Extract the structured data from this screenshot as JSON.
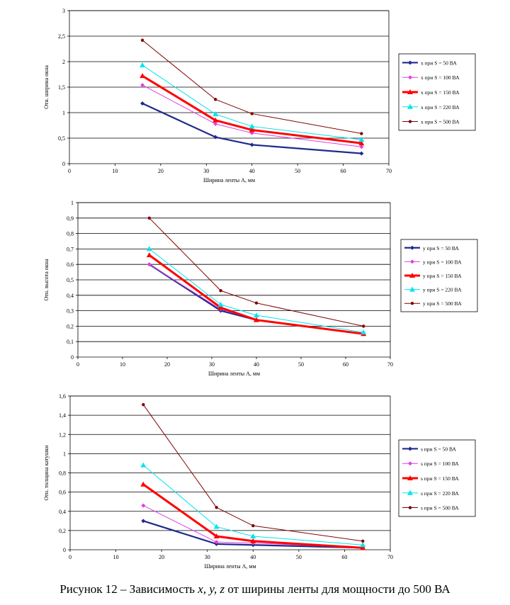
{
  "caption": {
    "prefix": "Рисунок 12 – Зависимость ",
    "vars": "x, y, z",
    "suffix": " от ширины ленты для мощности до 500 ВА"
  },
  "chart_data": [
    {
      "type": "line",
      "ylabel": "Отн. ширина окна",
      "xlabel": "Ширина ленты А, мм",
      "xlim": [
        0,
        70
      ],
      "ylim": [
        0,
        3
      ],
      "xticks": [
        "0",
        "10",
        "20",
        "30",
        "40",
        "50",
        "60",
        "70"
      ],
      "yticks": [
        "0",
        "0,5",
        "1",
        "1,5",
        "2",
        "2,5",
        "3"
      ],
      "grid": "horizontal",
      "legend_position": "right",
      "x": [
        16,
        32,
        40,
        64
      ],
      "series": [
        {
          "name": "x при S = 50 ВА",
          "color": "#1f2a8c",
          "marker": "diamond",
          "values": [
            1.18,
            0.52,
            0.37,
            0.2
          ]
        },
        {
          "name": "x при S = 100 ВА",
          "color": "#e040e0",
          "marker": "diamond",
          "values": [
            1.54,
            0.78,
            0.6,
            0.33
          ]
        },
        {
          "name": "x при S = 150 ВА",
          "color": "#ff0000",
          "marker": "triangle",
          "values": [
            1.72,
            0.85,
            0.66,
            0.4
          ]
        },
        {
          "name": "x при S = 220 ВА",
          "color": "#00e5ee",
          "marker": "triangle",
          "values": [
            1.93,
            0.97,
            0.73,
            0.47
          ]
        },
        {
          "name": "x при S = 500 ВА",
          "color": "#800000",
          "marker": "circle",
          "values": [
            2.42,
            1.26,
            0.98,
            0.59
          ]
        }
      ]
    },
    {
      "type": "line",
      "ylabel": "Отн. высота окна",
      "xlabel": "Ширина ленты А, мм",
      "xlim": [
        0,
        70
      ],
      "ylim": [
        0,
        1
      ],
      "xticks": [
        "0",
        "10",
        "20",
        "30",
        "40",
        "50",
        "60",
        "70"
      ],
      "yticks": [
        "0",
        "0,1",
        "0,2",
        "0,3",
        "0,4",
        "0,5",
        "0,6",
        "0,7",
        "0,8",
        "0,9",
        "1"
      ],
      "grid": "horizontal",
      "legend_position": "right",
      "x": [
        16,
        32,
        40,
        64
      ],
      "series": [
        {
          "name": "y при S = 50 ВА",
          "color": "#1f2a8c",
          "marker": "diamond",
          "values": [
            0.6,
            0.3,
            0.24,
            0.15
          ]
        },
        {
          "name": "y при S = 100 ВА",
          "color": "#e040e0",
          "marker": "diamond",
          "values": [
            0.6,
            0.31,
            0.24,
            0.15
          ]
        },
        {
          "name": "y при S = 150 ВА",
          "color": "#ff0000",
          "marker": "triangle",
          "values": [
            0.66,
            0.32,
            0.24,
            0.15
          ]
        },
        {
          "name": "y при S = 220 ВА",
          "color": "#00e5ee",
          "marker": "triangle",
          "values": [
            0.7,
            0.34,
            0.27,
            0.16
          ]
        },
        {
          "name": "y при S = 500 ВА",
          "color": "#800000",
          "marker": "circle",
          "values": [
            0.9,
            0.43,
            0.35,
            0.2
          ]
        }
      ]
    },
    {
      "type": "line",
      "ylabel": "Отн. толщина катушки",
      "xlabel": "Ширина ленты А, мм",
      "xlim": [
        0,
        70
      ],
      "ylim": [
        0,
        1.6
      ],
      "xticks": [
        "0",
        "10",
        "20",
        "30",
        "40",
        "50",
        "60",
        "70"
      ],
      "yticks": [
        "0",
        "0,2",
        "0,4",
        "0,6",
        "0,8",
        "1",
        "1,2",
        "1,4",
        "1,6"
      ],
      "grid": "horizontal",
      "legend_position": "right",
      "x": [
        16,
        32,
        40,
        64
      ],
      "series": [
        {
          "name": "s при S = 50 ВА",
          "color": "#1f2a8c",
          "marker": "diamond",
          "values": [
            0.3,
            0.06,
            0.05,
            0.02
          ]
        },
        {
          "name": "s при S = 100 ВА",
          "color": "#e040e0",
          "marker": "diamond",
          "values": [
            0.46,
            0.08,
            0.07,
            0.02
          ]
        },
        {
          "name": "s при S = 150 ВА",
          "color": "#ff0000",
          "marker": "triangle",
          "values": [
            0.68,
            0.14,
            0.09,
            0.02
          ]
        },
        {
          "name": "s при S = 220 ВА",
          "color": "#00e5ee",
          "marker": "triangle",
          "values": [
            0.88,
            0.24,
            0.14,
            0.05
          ]
        },
        {
          "name": "s при S = 500 ВА",
          "color": "#800000",
          "marker": "circle",
          "values": [
            1.51,
            0.44,
            0.25,
            0.09
          ]
        }
      ]
    }
  ]
}
